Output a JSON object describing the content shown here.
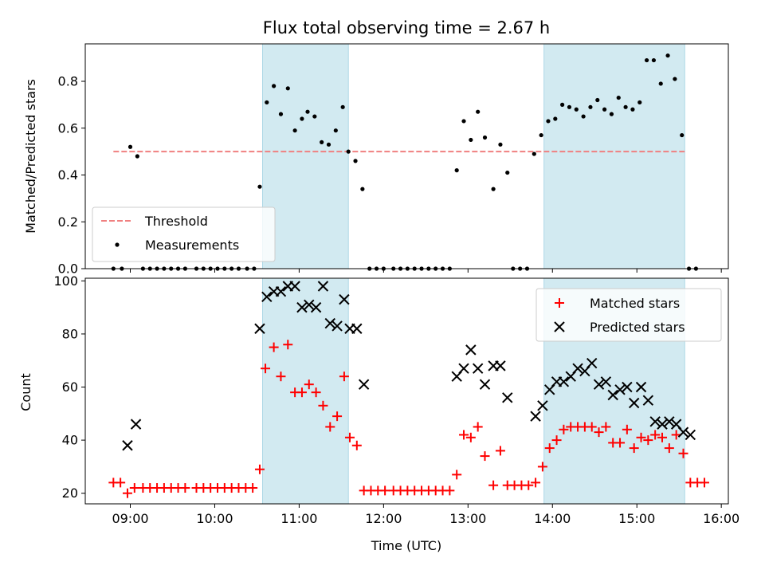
{
  "chart_data": {
    "title": "Flux total observing time = 2.67 h",
    "xlabel": "Time (UTC)",
    "x_ticks": [
      "09:00",
      "10:00",
      "11:00",
      "12:00",
      "13:00",
      "14:00",
      "15:00",
      "16:00"
    ],
    "xlim": [
      "08:28",
      "16:05"
    ],
    "highlight_intervals": [
      [
        "10:34",
        "11:35"
      ],
      [
        "13:54",
        "15:34"
      ]
    ],
    "highlight_color": "#add8e6",
    "panels": [
      {
        "type": "scatter",
        "ylabel": "Matched/Predicted stars",
        "ylim": [
          0,
          0.96
        ],
        "y_ticks": [
          0.0,
          0.2,
          0.4,
          0.6,
          0.8
        ],
        "threshold": {
          "name": "Threshold",
          "value": 0.5,
          "x_range": [
            "08:48",
            "15:34"
          ],
          "color": "#f08080"
        },
        "legend": [
          "Threshold",
          "Measurements"
        ],
        "legend_position": "lower-left",
        "series": [
          {
            "name": "Measurements",
            "color": "#000000",
            "marker": "dot",
            "points": [
              [
                "08:48",
                0
              ],
              [
                "08:54",
                0
              ],
              [
                "09:00",
                0.52
              ],
              [
                "09:05",
                0.48
              ],
              [
                "09:09",
                0
              ],
              [
                "09:14",
                0
              ],
              [
                "09:19",
                0
              ],
              [
                "09:24",
                0
              ],
              [
                "09:29",
                0
              ],
              [
                "09:34",
                0
              ],
              [
                "09:39",
                0
              ],
              [
                "09:47",
                0
              ],
              [
                "09:52",
                0
              ],
              [
                "09:57",
                0
              ],
              [
                "10:02",
                0
              ],
              [
                "10:07",
                0
              ],
              [
                "10:12",
                0
              ],
              [
                "10:17",
                0
              ],
              [
                "10:23",
                0
              ],
              [
                "10:28",
                0
              ],
              [
                "10:32",
                0.35
              ],
              [
                "10:37",
                0.71
              ],
              [
                "10:42",
                0.78
              ],
              [
                "10:47",
                0.66
              ],
              [
                "10:52",
                0.77
              ],
              [
                "10:57",
                0.59
              ],
              [
                "11:02",
                0.64
              ],
              [
                "11:06",
                0.67
              ],
              [
                "11:11",
                0.65
              ],
              [
                "11:16",
                0.54
              ],
              [
                "11:21",
                0.53
              ],
              [
                "11:26",
                0.59
              ],
              [
                "11:31",
                0.69
              ],
              [
                "11:35",
                0.5
              ],
              [
                "11:40",
                0.46
              ],
              [
                "11:45",
                0.34
              ],
              [
                "11:50",
                0
              ],
              [
                "11:55",
                0
              ],
              [
                "12:00",
                0
              ],
              [
                "12:07",
                0
              ],
              [
                "12:12",
                0
              ],
              [
                "12:17",
                0
              ],
              [
                "12:22",
                0
              ],
              [
                "12:27",
                0
              ],
              [
                "12:32",
                0
              ],
              [
                "12:37",
                0
              ],
              [
                "12:42",
                0
              ],
              [
                "12:47",
                0
              ],
              [
                "12:52",
                0.42
              ],
              [
                "12:57",
                0.63
              ],
              [
                "13:02",
                0.55
              ],
              [
                "13:07",
                0.67
              ],
              [
                "13:12",
                0.56
              ],
              [
                "13:18",
                0.34
              ],
              [
                "13:23",
                0.53
              ],
              [
                "13:28",
                0.41
              ],
              [
                "13:32",
                0
              ],
              [
                "13:37",
                0
              ],
              [
                "13:42",
                0
              ],
              [
                "13:47",
                0.49
              ],
              [
                "13:52",
                0.57
              ],
              [
                "13:57",
                0.63
              ],
              [
                "14:02",
                0.64
              ],
              [
                "14:07",
                0.7
              ],
              [
                "14:12",
                0.69
              ],
              [
                "14:17",
                0.68
              ],
              [
                "14:22",
                0.65
              ],
              [
                "14:27",
                0.69
              ],
              [
                "14:32",
                0.72
              ],
              [
                "14:37",
                0.68
              ],
              [
                "14:42",
                0.66
              ],
              [
                "14:47",
                0.73
              ],
              [
                "14:52",
                0.69
              ],
              [
                "14:57",
                0.68
              ],
              [
                "15:02",
                0.71
              ],
              [
                "15:07",
                0.89
              ],
              [
                "15:12",
                0.89
              ],
              [
                "15:17",
                0.79
              ],
              [
                "15:22",
                0.91
              ],
              [
                "15:27",
                0.81
              ],
              [
                "15:32",
                0.57
              ],
              [
                "15:37",
                0
              ],
              [
                "15:42",
                0
              ]
            ]
          }
        ]
      },
      {
        "type": "scatter",
        "ylabel": "Count",
        "ylim": [
          16,
          101
        ],
        "y_ticks": [
          20,
          40,
          60,
          80,
          100
        ],
        "legend": [
          "Matched stars",
          "Predicted stars"
        ],
        "legend_position": "upper-right",
        "series": [
          {
            "name": "Matched stars",
            "color": "#ff0000",
            "marker": "plus",
            "points": [
              [
                "08:48",
                24
              ],
              [
                "08:53",
                24
              ],
              [
                "08:58",
                20
              ],
              [
                "09:03",
                22
              ],
              [
                "09:09",
                22
              ],
              [
                "09:14",
                22
              ],
              [
                "09:19",
                22
              ],
              [
                "09:24",
                22
              ],
              [
                "09:29",
                22
              ],
              [
                "09:34",
                22
              ],
              [
                "09:39",
                22
              ],
              [
                "09:47",
                22
              ],
              [
                "09:52",
                22
              ],
              [
                "09:57",
                22
              ],
              [
                "10:02",
                22
              ],
              [
                "10:07",
                22
              ],
              [
                "10:12",
                22
              ],
              [
                "10:17",
                22
              ],
              [
                "10:22",
                22
              ],
              [
                "10:27",
                22
              ],
              [
                "10:32",
                29
              ],
              [
                "10:36",
                67
              ],
              [
                "10:42",
                75
              ],
              [
                "10:47",
                64
              ],
              [
                "10:52",
                76
              ],
              [
                "10:57",
                58
              ],
              [
                "11:02",
                58
              ],
              [
                "11:07",
                61
              ],
              [
                "11:12",
                58
              ],
              [
                "11:17",
                53
              ],
              [
                "11:22",
                45
              ],
              [
                "11:27",
                49
              ],
              [
                "11:32",
                64
              ],
              [
                "11:36",
                41
              ],
              [
                "11:41",
                38
              ],
              [
                "11:46",
                21
              ],
              [
                "11:51",
                21
              ],
              [
                "11:56",
                21
              ],
              [
                "12:01",
                21
              ],
              [
                "12:07",
                21
              ],
              [
                "12:12",
                21
              ],
              [
                "12:17",
                21
              ],
              [
                "12:22",
                21
              ],
              [
                "12:27",
                21
              ],
              [
                "12:32",
                21
              ],
              [
                "12:37",
                21
              ],
              [
                "12:42",
                21
              ],
              [
                "12:47",
                21
              ],
              [
                "12:52",
                27
              ],
              [
                "12:57",
                42
              ],
              [
                "13:02",
                41
              ],
              [
                "13:07",
                45
              ],
              [
                "13:12",
                34
              ],
              [
                "13:18",
                23
              ],
              [
                "13:23",
                36
              ],
              [
                "13:28",
                23
              ],
              [
                "13:33",
                23
              ],
              [
                "13:38",
                23
              ],
              [
                "13:43",
                23
              ],
              [
                "13:48",
                24
              ],
              [
                "13:53",
                30
              ],
              [
                "13:58",
                37
              ],
              [
                "14:03",
                40
              ],
              [
                "14:08",
                44
              ],
              [
                "14:13",
                45
              ],
              [
                "14:18",
                45
              ],
              [
                "14:23",
                45
              ],
              [
                "14:28",
                45
              ],
              [
                "14:33",
                43
              ],
              [
                "14:38",
                45
              ],
              [
                "14:43",
                39
              ],
              [
                "14:48",
                39
              ],
              [
                "14:53",
                44
              ],
              [
                "14:58",
                37
              ],
              [
                "15:03",
                41
              ],
              [
                "15:08",
                40
              ],
              [
                "15:13",
                42
              ],
              [
                "15:18",
                41
              ],
              [
                "15:23",
                37
              ],
              [
                "15:28",
                42
              ],
              [
                "15:33",
                35
              ],
              [
                "15:38",
                24
              ],
              [
                "15:43",
                24
              ],
              [
                "15:48",
                24
              ]
            ]
          },
          {
            "name": "Predicted stars",
            "color": "#000000",
            "marker": "x",
            "points": [
              [
                "08:58",
                38
              ],
              [
                "09:04",
                46
              ],
              [
                "10:32",
                82
              ],
              [
                "10:37",
                94
              ],
              [
                "10:42",
                96
              ],
              [
                "10:47",
                96
              ],
              [
                "10:52",
                98
              ],
              [
                "10:57",
                98
              ],
              [
                "11:02",
                90
              ],
              [
                "11:07",
                91
              ],
              [
                "11:12",
                90
              ],
              [
                "11:17",
                98
              ],
              [
                "11:22",
                84
              ],
              [
                "11:27",
                83
              ],
              [
                "11:32",
                93
              ],
              [
                "11:36",
                82
              ],
              [
                "11:41",
                82
              ],
              [
                "11:46",
                61
              ],
              [
                "12:52",
                64
              ],
              [
                "12:57",
                67
              ],
              [
                "13:02",
                74
              ],
              [
                "13:07",
                67
              ],
              [
                "13:12",
                61
              ],
              [
                "13:18",
                68
              ],
              [
                "13:23",
                68
              ],
              [
                "13:28",
                56
              ],
              [
                "13:48",
                49
              ],
              [
                "13:53",
                53
              ],
              [
                "13:58",
                59
              ],
              [
                "14:03",
                62
              ],
              [
                "14:08",
                62
              ],
              [
                "14:13",
                64
              ],
              [
                "14:18",
                67
              ],
              [
                "14:23",
                66
              ],
              [
                "14:28",
                69
              ],
              [
                "14:33",
                61
              ],
              [
                "14:38",
                62
              ],
              [
                "14:43",
                57
              ],
              [
                "14:48",
                59
              ],
              [
                "14:53",
                60
              ],
              [
                "14:58",
                54
              ],
              [
                "15:03",
                60
              ],
              [
                "15:08",
                55
              ],
              [
                "15:13",
                47
              ],
              [
                "15:18",
                46
              ],
              [
                "15:23",
                47
              ],
              [
                "15:28",
                46
              ],
              [
                "15:33",
                43
              ],
              [
                "15:38",
                42
              ]
            ]
          }
        ]
      }
    ]
  }
}
